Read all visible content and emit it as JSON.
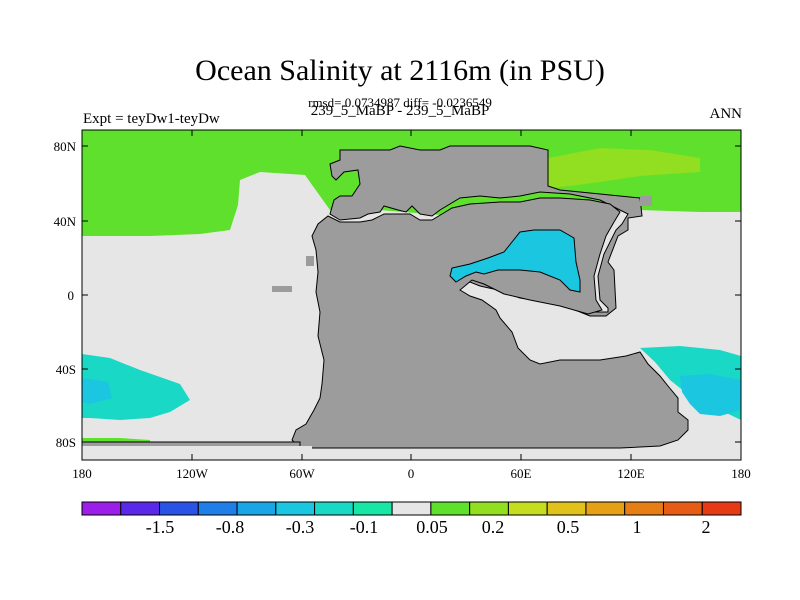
{
  "map": {
    "title": "Ocean Salinity at 2116m (in PSU)",
    "stats": "rmsd= 0.0734987 diff= -0.0236549",
    "experiment": "Expt = teyDw1-teyDw",
    "period": "239_5_MaBP - 239_5_MaBP",
    "season": "ANN",
    "lat_ticks": [
      "80N",
      "40N",
      "0",
      "40S",
      "80S"
    ],
    "lon_ticks": [
      "180",
      "120W",
      "60W",
      "0",
      "60E",
      "120E",
      "180"
    ]
  },
  "colorbar": {
    "labels": [
      "-1.5",
      "-0.8",
      "-0.3",
      "-0.1",
      "0.05",
      "0.2",
      "0.5",
      "1",
      "2"
    ],
    "colors": [
      "#9b1fe8",
      "#5a28e8",
      "#2a52e6",
      "#1f7ee8",
      "#1aa6e6",
      "#1ac6e0",
      "#1ad8c6",
      "#18e6a4",
      "#e6e6e6",
      "#5ee02c",
      "#92de20",
      "#c6dc1e",
      "#e0c21a",
      "#e6a016",
      "#e67e14",
      "#e65c14",
      "#e63a14"
    ]
  },
  "colors": {
    "land": "#9c9c9c",
    "near_zero": "#e6e6e6",
    "green": "#5ee02c",
    "light_green": "#92de20",
    "cyan": "#1ac6e0",
    "teal": "#1ad8c6"
  }
}
